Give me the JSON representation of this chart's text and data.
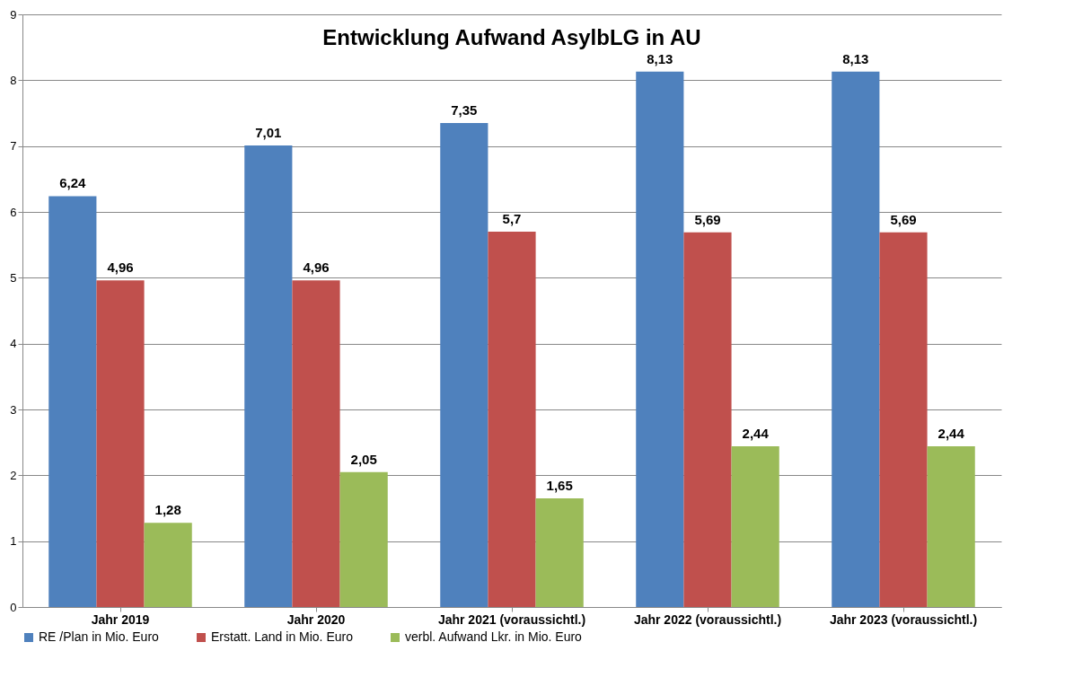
{
  "chart_data": {
    "type": "bar",
    "title": "Entwicklung Aufwand AsylbLG in AU",
    "categories": [
      "Jahr 2019",
      "Jahr 2020",
      "Jahr 2021 (voraussichtl.)",
      "Jahr 2022 (voraussichtl.)",
      "Jahr 2023 (voraussichtl.)"
    ],
    "series": [
      {
        "name": "RE /Plan in Mio. Euro",
        "color": "#4f81bd",
        "values": [
          6.24,
          7.01,
          7.35,
          8.13,
          8.13
        ],
        "value_labels": [
          "6,24",
          "7,01",
          "7,35",
          "8,13",
          "8,13"
        ]
      },
      {
        "name": "Erstatt. Land in Mio. Euro",
        "color": "#c0504d",
        "values": [
          4.96,
          4.96,
          5.7,
          5.69,
          5.69
        ],
        "value_labels": [
          "4,96",
          "4,96",
          "5,7",
          "5,69",
          "5,69"
        ]
      },
      {
        "name": "verbl. Aufwand Lkr. in Mio. Euro",
        "color": "#9bbb59",
        "values": [
          1.28,
          2.05,
          1.65,
          2.44,
          2.44
        ],
        "value_labels": [
          "1,28",
          "2,05",
          "1,65",
          "2,44",
          "2,44"
        ]
      }
    ],
    "ylim": [
      0,
      9
    ],
    "yticks": [
      0,
      1,
      2,
      3,
      4,
      5,
      6,
      7,
      8,
      9
    ],
    "grid": "y",
    "legend": "bottom"
  }
}
